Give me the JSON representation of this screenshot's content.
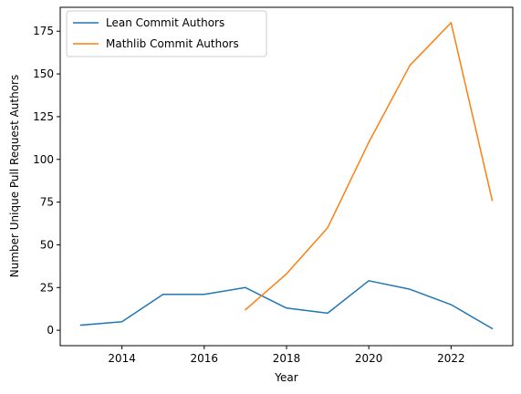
{
  "chart_data": {
    "type": "line",
    "title": "",
    "xlabel": "Year",
    "ylabel": "Number Unique Pull Request Authors",
    "xlim": [
      2012.5,
      2023.5
    ],
    "ylim": [
      -9,
      189
    ],
    "xticks": [
      2014,
      2016,
      2018,
      2020,
      2022
    ],
    "yticks": [
      0,
      25,
      50,
      75,
      100,
      125,
      150,
      175
    ],
    "grid": false,
    "legend_position": "top-left",
    "series": [
      {
        "name": "Lean Commit Authors",
        "color": "#1f77b4",
        "x": [
          2013,
          2014,
          2015,
          2016,
          2017,
          2018,
          2019,
          2020,
          2021,
          2022,
          2023
        ],
        "y": [
          3,
          5,
          21,
          21,
          25,
          13,
          10,
          29,
          24,
          15,
          1
        ]
      },
      {
        "name": "Mathlib Commit Authors",
        "color": "#ff7f0e",
        "x": [
          2017,
          2018,
          2019,
          2020,
          2021,
          2022,
          2023
        ],
        "y": [
          12,
          33,
          60,
          110,
          155,
          180,
          76
        ]
      }
    ]
  }
}
